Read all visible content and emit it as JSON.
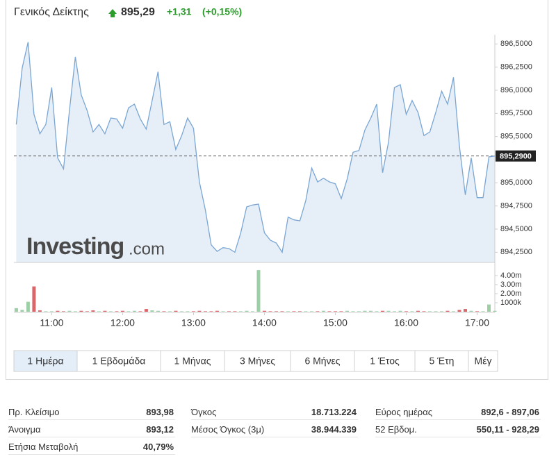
{
  "header": {
    "title": "Γενικός Δείκτης",
    "price": "895,29",
    "change": "+1,31",
    "change_pct": "(+0,15%)"
  },
  "watermark": {
    "brand": "Investing",
    "suffix": ".com"
  },
  "chart_data": [
    {
      "type": "area",
      "color": "#7aa6d4",
      "fill": "#e6eef7",
      "x": [
        630,
        635,
        640,
        645,
        650,
        655,
        660,
        665,
        670,
        675,
        680,
        685,
        690,
        695,
        700,
        705,
        710,
        715,
        720,
        725,
        730,
        735,
        740,
        745,
        750,
        755,
        760,
        765,
        770,
        775,
        780,
        785,
        790,
        795,
        800,
        805,
        810,
        815,
        820,
        825,
        830,
        835,
        840,
        845,
        850,
        855,
        860,
        865,
        870,
        875,
        880,
        885,
        890,
        895,
        900,
        905,
        910,
        915,
        920,
        925,
        930,
        935,
        940,
        945,
        950,
        955,
        960,
        965,
        970,
        975,
        980,
        985,
        990,
        995,
        1000,
        1005,
        1010,
        1015,
        1020,
        1025,
        1030,
        1035
      ],
      "values": [
        895.63,
        896.24,
        896.52,
        895.74,
        895.53,
        895.63,
        896.03,
        895.27,
        895.15,
        895.78,
        896.36,
        895.95,
        895.78,
        895.55,
        895.63,
        895.53,
        895.7,
        895.69,
        895.59,
        895.81,
        895.85,
        895.69,
        895.58,
        895.89,
        896.2,
        895.63,
        895.66,
        895.36,
        895.51,
        895.7,
        895.59,
        895.01,
        894.71,
        894.33,
        894.26,
        894.3,
        894.29,
        894.25,
        894.46,
        894.74,
        894.76,
        894.77,
        894.46,
        894.38,
        894.35,
        894.25,
        894.63,
        894.6,
        894.59,
        894.81,
        895.16,
        895.01,
        895.05,
        895.01,
        894.99,
        894.83,
        895.04,
        895.33,
        895.35,
        895.57,
        895.7,
        895.85,
        895.11,
        895.44,
        896.03,
        896.06,
        895.74,
        895.89,
        895.76,
        895.51,
        895.55,
        895.76,
        895.99,
        895.85,
        896.14,
        895.4,
        894.87,
        895.27,
        894.84,
        894.84,
        895.28,
        895.29
      ],
      "xlim": [
        628,
        1035
      ],
      "ylim": [
        894.14,
        896.6
      ],
      "yticks": [
        {
          "value": 896.5,
          "label": "896,5000"
        },
        {
          "value": 896.25,
          "label": "896,2500"
        },
        {
          "value": 896,
          "label": "896,0000"
        },
        {
          "value": 895.75,
          "label": "895,7500"
        },
        {
          "value": 895.5,
          "label": "895,5000"
        },
        {
          "value": 895,
          "label": "895,0000"
        },
        {
          "value": 894.75,
          "label": "894,7500"
        },
        {
          "value": 894.5,
          "label": "894,5000"
        },
        {
          "value": 894.25,
          "label": "894,2500"
        }
      ],
      "current": {
        "value": 895.29,
        "label": "895,2900"
      }
    },
    {
      "type": "bar",
      "up_color": "#9ccfa6",
      "down_color": "#d9676a",
      "x": [
        630,
        635,
        640,
        645,
        650,
        655,
        660,
        665,
        670,
        675,
        680,
        685,
        690,
        695,
        700,
        705,
        710,
        715,
        720,
        725,
        730,
        735,
        740,
        745,
        750,
        755,
        760,
        765,
        770,
        775,
        780,
        785,
        790,
        795,
        800,
        805,
        810,
        815,
        820,
        825,
        830,
        835,
        840,
        845,
        850,
        855,
        860,
        865,
        870,
        875,
        880,
        885,
        890,
        895,
        900,
        905,
        910,
        915,
        920,
        925,
        930,
        935,
        940,
        945,
        950,
        955,
        960,
        965,
        970,
        975,
        980,
        985,
        990,
        995,
        1000,
        1005,
        1010,
        1015,
        1020,
        1025,
        1030,
        1035
      ],
      "values": [
        0.4,
        0.2,
        1.1,
        2.8,
        0.15,
        0.05,
        0.05,
        0.1,
        0.05,
        0.1,
        0.05,
        0.1,
        0.05,
        0.15,
        0.05,
        0.1,
        0.05,
        0.05,
        0.1,
        0.05,
        0.1,
        0.05,
        0.3,
        0.15,
        0.1,
        0.05,
        0.05,
        0.1,
        0.05,
        0.05,
        0.05,
        0.1,
        0.05,
        0.05,
        0.1,
        0.05,
        0.05,
        0.05,
        0.05,
        0.1,
        0.05,
        4.6,
        0.1,
        0.05,
        0.05,
        0.05,
        0.05,
        0.05,
        0.05,
        0.05,
        0.05,
        0.05,
        0.1,
        0.05,
        0.05,
        0.05,
        0.1,
        0.05,
        0.05,
        0.1,
        0.1,
        0.05,
        0.1,
        0.1,
        0.05,
        0.1,
        0.05,
        0.05,
        0.1,
        0.05,
        0.05,
        0.05,
        0.05,
        0.1,
        0.05,
        0.2,
        0.3,
        0.1,
        0.05,
        0.05,
        0.8,
        0.1
      ],
      "xlim": [
        628,
        1035
      ],
      "ylim": [
        0,
        5.3
      ],
      "yticks": [
        {
          "value": 4,
          "label": "4.00m"
        },
        {
          "value": 3,
          "label": "3.00m"
        },
        {
          "value": 2,
          "label": "2.00m"
        },
        {
          "value": 1,
          "label": "1000k"
        }
      ],
      "xticks": [
        {
          "value": 660,
          "label": "11:00"
        },
        {
          "value": 720,
          "label": "12:00"
        },
        {
          "value": 780,
          "label": "13:00"
        },
        {
          "value": 840,
          "label": "14:00"
        },
        {
          "value": 900,
          "label": "15:00"
        },
        {
          "value": 960,
          "label": "16:00"
        },
        {
          "value": 1020,
          "label": "17:00"
        }
      ]
    }
  ],
  "range_buttons": [
    "1 Ημέρα",
    "1 Εβδομάδα",
    "1 Μήνας",
    "3 Μήνες",
    "6 Μήνες",
    "1 Έτος",
    "5 Έτη",
    "Μέγ"
  ],
  "active_button": 0,
  "stats": [
    [
      [
        "Πρ. Κλείσιμο",
        "893,98"
      ],
      [
        "Άνοιγμα",
        "893,12"
      ],
      [
        "Ετήσια Μεταβολή",
        "40,79%"
      ]
    ],
    [
      [
        "Όγκος",
        "18.713.224"
      ],
      [
        "Μέσος Όγκος (3μ)",
        "38.944.339"
      ]
    ],
    [
      [
        "Εύρος ημέρας",
        "892,6 - 897,06"
      ],
      [
        "52 Εβδομ.",
        "550,11 - 928,29"
      ]
    ]
  ]
}
